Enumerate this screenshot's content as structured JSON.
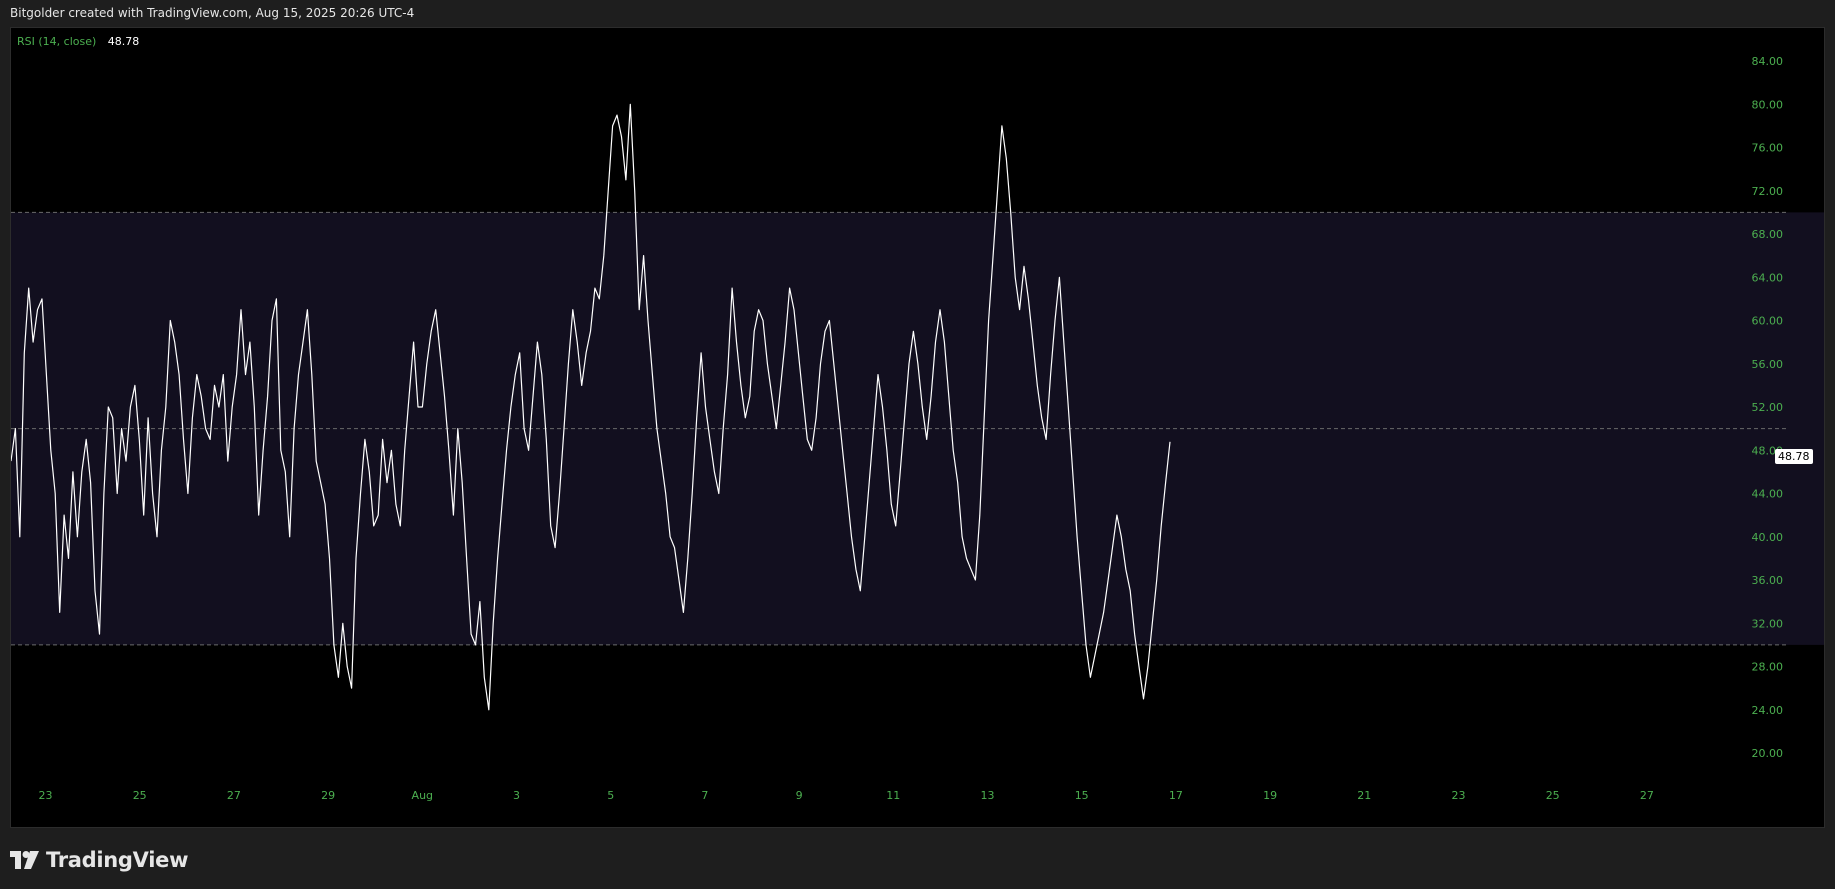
{
  "header": {
    "attribution": "Bitgolder created with TradingView.com, Aug 15, 2025 20:26 UTC-4"
  },
  "legend": {
    "indicator": "RSI (14, close)",
    "value": "48.78"
  },
  "footer": {
    "brand": "TradingView"
  },
  "colors": {
    "background": "#000000",
    "line": "#ffffff",
    "band_fill": "#120f1f",
    "axis_text": "#4caf50",
    "overbought_fill": "#2b4a2b"
  },
  "chart_data": {
    "type": "line",
    "title": "",
    "ylim": [
      18,
      86
    ],
    "y_ticks": [
      "84.00",
      "80.00",
      "76.00",
      "72.00",
      "68.00",
      "64.00",
      "60.00",
      "56.00",
      "52.00",
      "48.00",
      "44.00",
      "40.00",
      "36.00",
      "32.00",
      "28.00",
      "24.00",
      "20.00"
    ],
    "x_ticks": [
      "23",
      "25",
      "27",
      "29",
      "Aug",
      "3",
      "5",
      "7",
      "9",
      "11",
      "13",
      "15",
      "17",
      "19",
      "21",
      "23",
      "25",
      "27"
    ],
    "bands": {
      "upper": 70,
      "middle": 50,
      "lower": 30
    },
    "last_value": "48.78",
    "series": [
      {
        "values": [
          47,
          50,
          40,
          57,
          63,
          58,
          61,
          62,
          55,
          48,
          44,
          33,
          42,
          38,
          46,
          40,
          46,
          49,
          45,
          35,
          31,
          44,
          52,
          51,
          44,
          50,
          47,
          52,
          54,
          49,
          42,
          51,
          44,
          40,
          48,
          52,
          60,
          58,
          55,
          49,
          44,
          51,
          55,
          53,
          50,
          49,
          54,
          52,
          55,
          47,
          52,
          55,
          61,
          55,
          58,
          52,
          42,
          48,
          53,
          60,
          62,
          48,
          46,
          40,
          50,
          55,
          58,
          61,
          55,
          47,
          45,
          43,
          38,
          30,
          27,
          32,
          28,
          26,
          38,
          44,
          49,
          46,
          41,
          42,
          49,
          45,
          48,
          43,
          41,
          48,
          53,
          58,
          52,
          52,
          56,
          59,
          61,
          57,
          53,
          48,
          42,
          50,
          45,
          38,
          31,
          30,
          34,
          27,
          24,
          32,
          38,
          43,
          48,
          52,
          55,
          57,
          50,
          48,
          53,
          58,
          55,
          49,
          41,
          39,
          44,
          50,
          56,
          61,
          58,
          54,
          57,
          59,
          63,
          62,
          66,
          72,
          78,
          79,
          77,
          73,
          80,
          72,
          61,
          66,
          60,
          55,
          50,
          47,
          44,
          40,
          39,
          36,
          33,
          38,
          44,
          51,
          57,
          52,
          49,
          46,
          44,
          50,
          55,
          63,
          58,
          54,
          51,
          53,
          59,
          61,
          60,
          56,
          53,
          50,
          54,
          58,
          63,
          61,
          57,
          53,
          49,
          48,
          51,
          56,
          59,
          60,
          56,
          52,
          48,
          44,
          40,
          37,
          35,
          40,
          45,
          50,
          55,
          52,
          48,
          43,
          41,
          46,
          51,
          56,
          59,
          56,
          52,
          49,
          53,
          58,
          61,
          58,
          53,
          48,
          45,
          40,
          38,
          37,
          36,
          42,
          51,
          60,
          66,
          72,
          78,
          75,
          70,
          64,
          61,
          65,
          62,
          58,
          54,
          51,
          49,
          55,
          60,
          64,
          58,
          52,
          46,
          40,
          35,
          30,
          27,
          29,
          31,
          33,
          36,
          39,
          42,
          40,
          37,
          35,
          31,
          28,
          25,
          28,
          32,
          36,
          41,
          45,
          48.78
        ]
      }
    ]
  }
}
